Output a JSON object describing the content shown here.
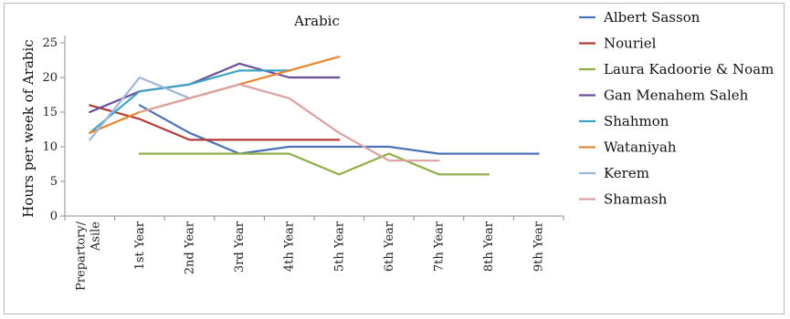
{
  "chart_data": {
    "type": "line",
    "title": "Arabic",
    "xlabel": "",
    "ylabel": "Hours per week of Arabic",
    "ylim": [
      0,
      25
    ],
    "yticks": [
      0,
      5,
      10,
      15,
      20,
      25
    ],
    "grid": false,
    "legend_position": "right",
    "categories": [
      "Prepartory/ Asile",
      "1st Year",
      "2nd Year",
      "3rd Year",
      "4th Year",
      "5th Year",
      "6th Year",
      "7th Year",
      "8th Year",
      "9th Year"
    ],
    "series": [
      {
        "name": "Albert Sasson",
        "color": "#4a72b8",
        "values": [
          null,
          16,
          12,
          9,
          10,
          10,
          10,
          9,
          9,
          9
        ]
      },
      {
        "name": "Nouriel",
        "color": "#b23b37",
        "values": [
          16,
          14,
          11,
          11,
          11,
          11,
          null,
          null,
          null,
          null
        ]
      },
      {
        "name": "Laura Kadoorie & Noam",
        "color": "#8fae45",
        "values": [
          null,
          9,
          9,
          9,
          9,
          6,
          9,
          6,
          6,
          null
        ]
      },
      {
        "name": "Gan Menahem Saleh",
        "color": "#6e4c9a",
        "values": [
          15,
          18,
          19,
          22,
          20,
          20,
          null,
          null,
          null,
          null
        ]
      },
      {
        "name": "Shahmon",
        "color": "#3ea3c3",
        "values": [
          12,
          18,
          19,
          21,
          21,
          null,
          null,
          null,
          null,
          null
        ]
      },
      {
        "name": "Wataniyah",
        "color": "#e8862f",
        "values": [
          12,
          15,
          17,
          19,
          21,
          23,
          null,
          null,
          null,
          null
        ]
      },
      {
        "name": "Kerem",
        "color": "#9db6db",
        "values": [
          11,
          20,
          17,
          null,
          null,
          null,
          null,
          null,
          null,
          null
        ]
      },
      {
        "name": "Shamash",
        "color": "#dba0a0",
        "values": [
          null,
          15,
          17,
          19,
          17,
          12,
          8,
          8,
          null,
          null
        ]
      }
    ]
  }
}
